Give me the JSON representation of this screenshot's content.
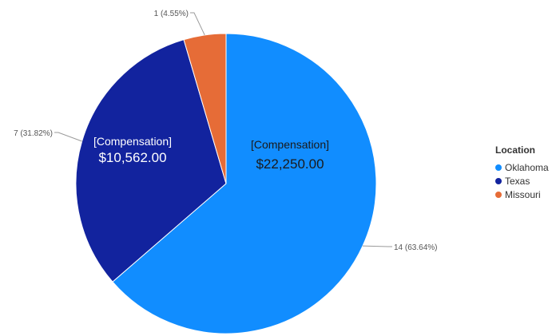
{
  "chart_data": {
    "type": "pie",
    "categories": [
      "Oklahoma",
      "Texas",
      "Missouri"
    ],
    "values": [
      14,
      7,
      1
    ],
    "value_labels": [
      "14 (63.64%)",
      "7 (31.82%)",
      "1 (4.55%)"
    ],
    "colors": [
      "#118DFF",
      "#12239E",
      "#E66C37"
    ],
    "slice_annotations": [
      {
        "category": "Oklahoma",
        "label": "[Compensation]",
        "value": "$22,250.00",
        "text_color": "#1a1a1a"
      },
      {
        "category": "Texas",
        "label": "[Compensation]",
        "value": "$10,562.00",
        "text_color": "#ffffff"
      }
    ],
    "legend": {
      "title": "Location",
      "position": "right",
      "items": [
        "Oklahoma",
        "Texas",
        "Missouri"
      ]
    },
    "start_angle_deg": 0,
    "direction": "clockwise"
  }
}
